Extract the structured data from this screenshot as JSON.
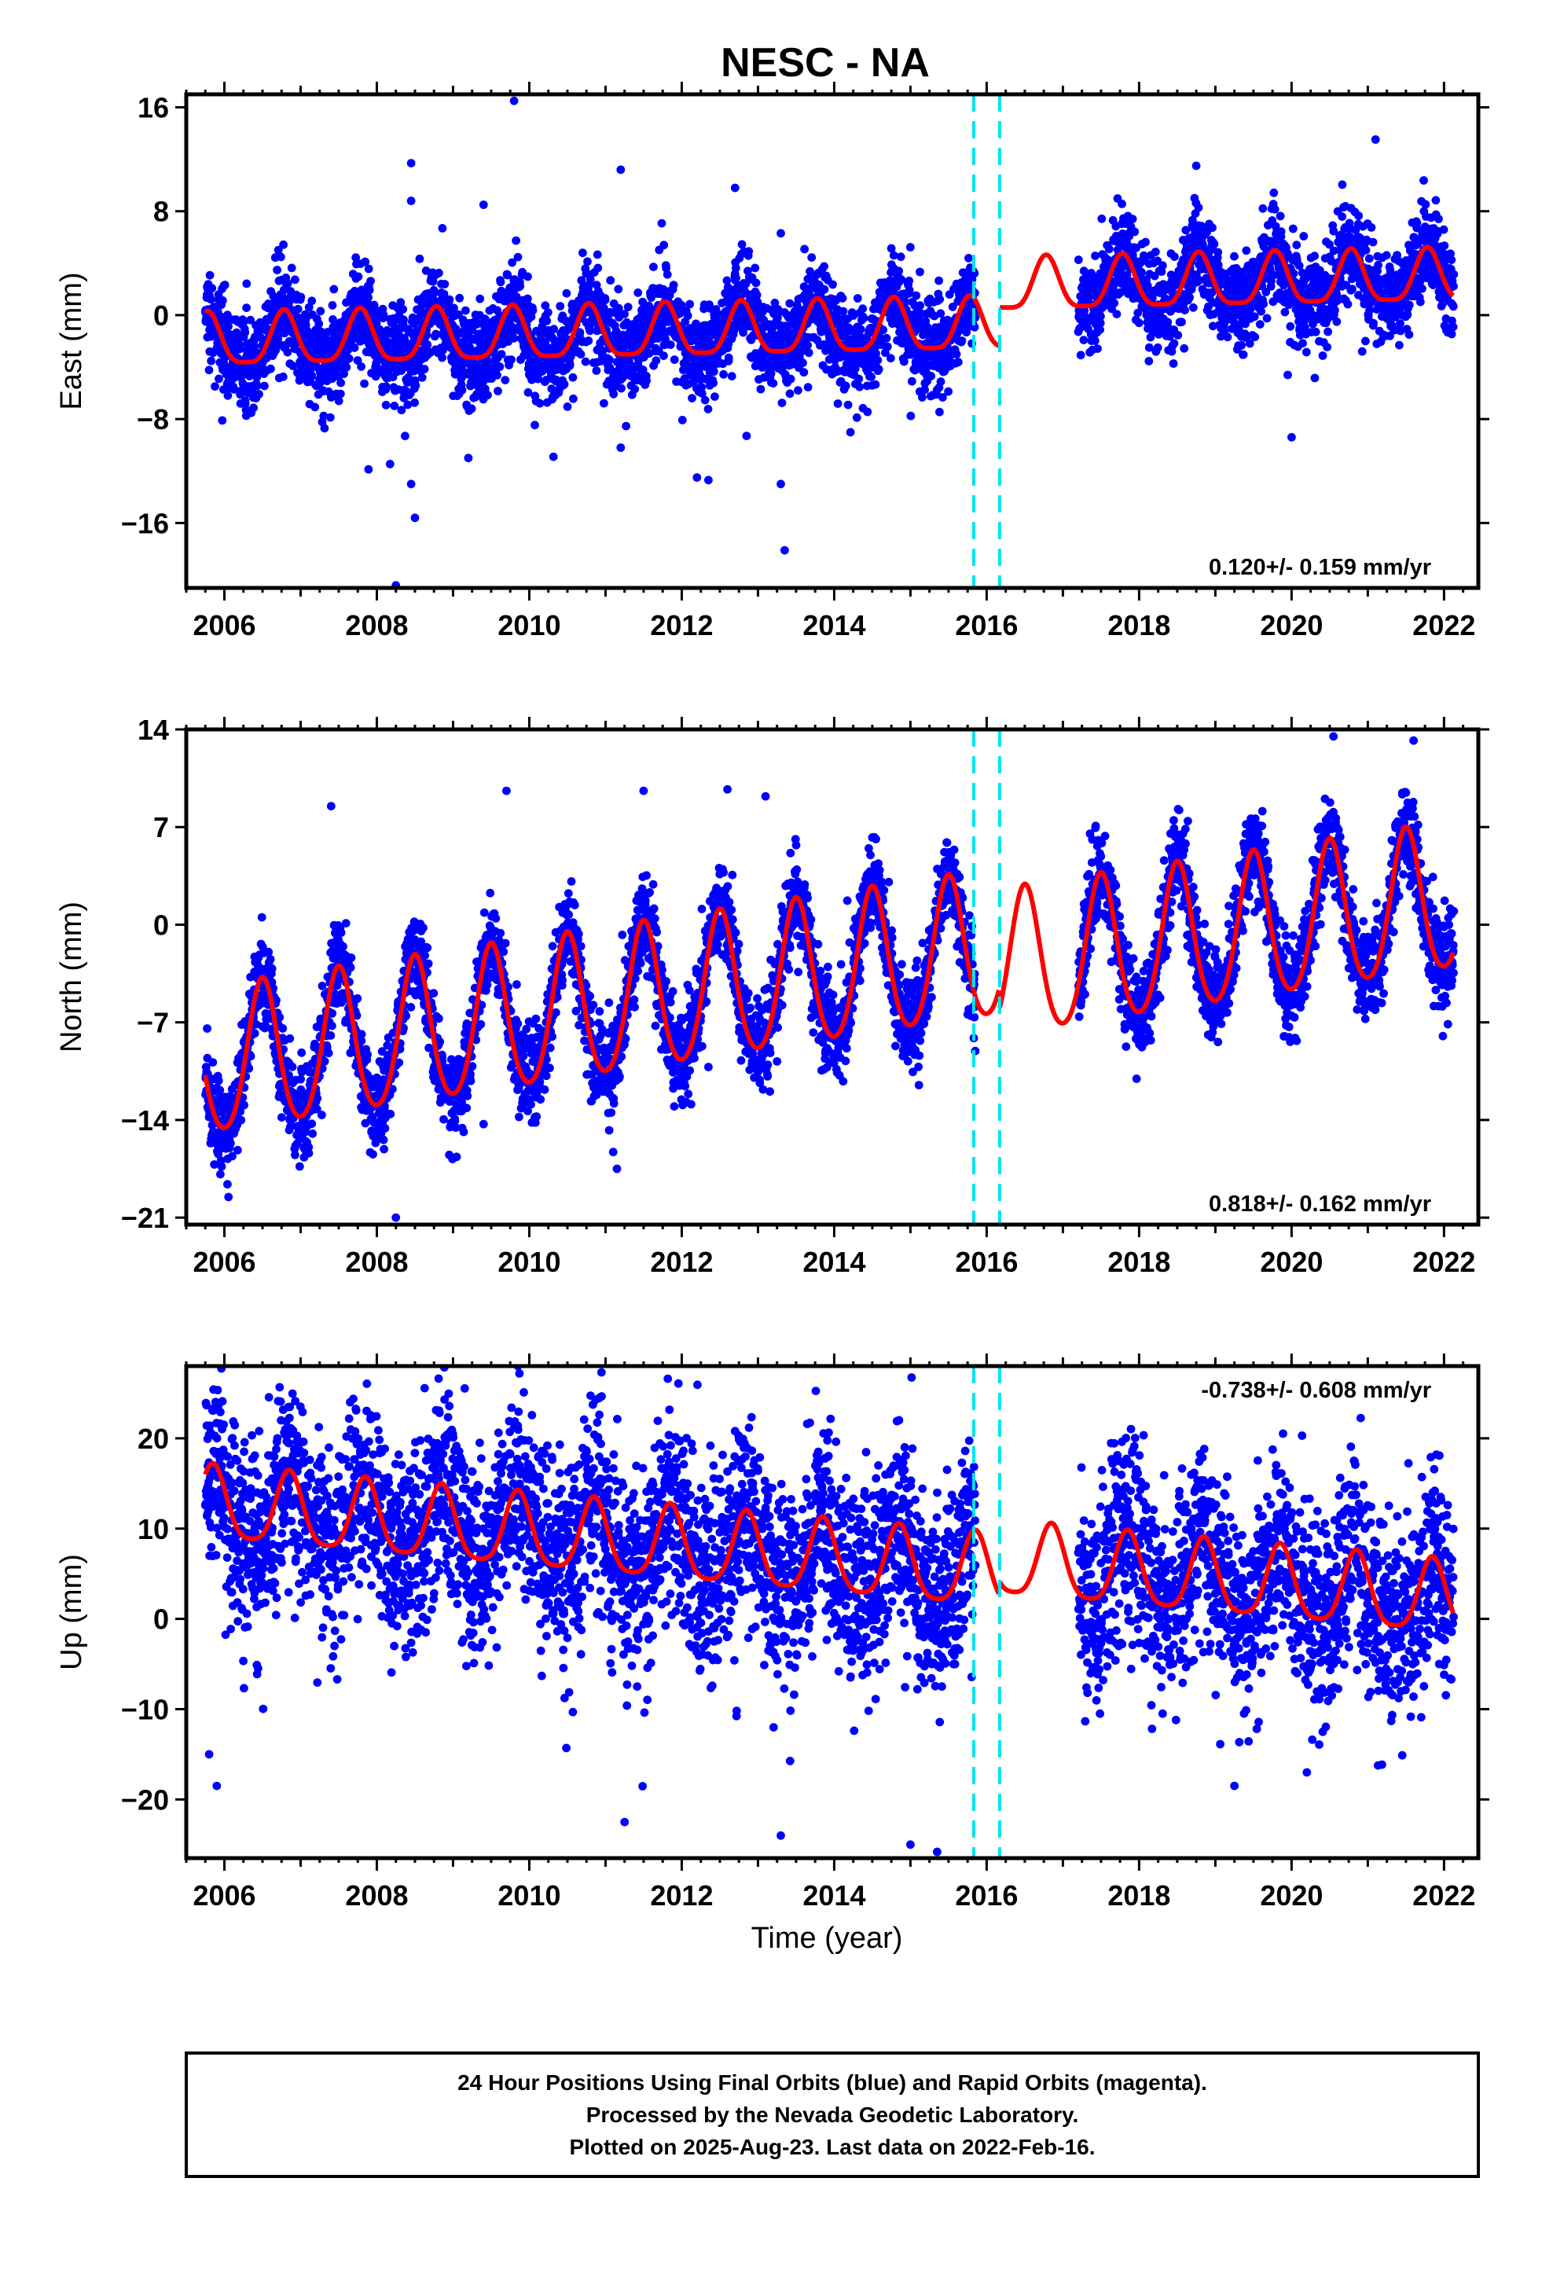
{
  "title": "NESC - NA",
  "xlabel": "Time (year)",
  "colors": {
    "data": "#0000ff",
    "model": "#ff0000",
    "offset": "#00e5ee",
    "frame": "#000000"
  },
  "footer": {
    "line1": "24 Hour Positions Using Final Orbits (blue) and Rapid Orbits (magenta).",
    "line2": "Processed by the Nevada Geodetic Laboratory.",
    "line3": "Plotted on 2025-Aug-23. Last data on 2022-Feb-16."
  },
  "chart_data": [
    {
      "type": "scatter",
      "name": "east",
      "ylabel": "East (mm)",
      "rate": "0.120+/- 0.159 mm/yr",
      "xlim": [
        2005.5,
        2022.45
      ],
      "ylim": [
        -21,
        17
      ],
      "yticks": [
        16,
        8,
        0,
        -8,
        -16
      ],
      "xticks": [
        2006,
        2008,
        2010,
        2012,
        2014,
        2016,
        2018,
        2020,
        2022
      ],
      "offsets": [
        2015.83,
        2016.17
      ],
      "data_start": 2005.75,
      "data_end": 2022.13,
      "gaps": [
        [
          2015.85,
          2017.2
        ]
      ],
      "model": {
        "trend": 0.12,
        "offset_early": -1.2,
        "offset_late": 1.8,
        "step_time": 2016.17,
        "annual_amp": 2.0,
        "annual_phase": 0.78,
        "semi_amp": 0.5,
        "noise": 1.8
      },
      "outliers": [
        [
          2009.8,
          16.5
        ],
        [
          2008.45,
          11.7
        ],
        [
          2008.45,
          8.8
        ],
        [
          2011.2,
          11.2
        ],
        [
          2012.7,
          9.8
        ],
        [
          2013.3,
          6.3
        ],
        [
          2009.4,
          8.5
        ],
        [
          2012.2,
          -12.5
        ],
        [
          2012.35,
          -12.7
        ],
        [
          2008.45,
          -13.0
        ],
        [
          2008.5,
          -15.6
        ],
        [
          2008.25,
          -20.8
        ],
        [
          2013.3,
          -13.0
        ],
        [
          2013.35,
          -18.1
        ],
        [
          2011.2,
          -10.2
        ],
        [
          2009.2,
          -11.0
        ],
        [
          2012.85,
          -9.3
        ],
        [
          2020.0,
          -9.4
        ],
        [
          2018.75,
          11.5
        ],
        [
          2019.95,
          -4.6
        ]
      ]
    },
    {
      "type": "scatter",
      "name": "north",
      "ylabel": "North (mm)",
      "rate": "0.818+/- 0.162 mm/yr",
      "xlim": [
        2005.5,
        2022.45
      ],
      "ylim": [
        -21.5,
        14
      ],
      "yticks": [
        14,
        7,
        0,
        -7,
        -14,
        -21
      ],
      "xticks": [
        2006,
        2008,
        2010,
        2012,
        2014,
        2016,
        2018,
        2020,
        2022
      ],
      "offsets": [
        2015.83,
        2016.17
      ],
      "data_start": 2005.75,
      "data_end": 2022.13,
      "gaps": [
        [
          2015.85,
          2017.2
        ]
      ],
      "model": {
        "trend": 0.818,
        "offset_early": -3.5,
        "offset_late": -5.0,
        "step_time": 2016.17,
        "annual_amp": 5.2,
        "annual_phase": 0.5,
        "semi_amp": 0.6,
        "noise": 1.6
      },
      "outliers": [
        [
          2008.25,
          -21.0
        ],
        [
          2011.15,
          -17.5
        ],
        [
          2011.1,
          -16.3
        ],
        [
          2008.95,
          -16.5
        ],
        [
          2012.6,
          9.7
        ],
        [
          2011.5,
          9.6
        ],
        [
          2013.1,
          9.2
        ],
        [
          2012.35,
          -10.2
        ],
        [
          2010.85,
          -12.3
        ],
        [
          2009.4,
          -14.3
        ],
        [
          2013.25,
          -9.8
        ],
        [
          2009.7,
          9.6
        ],
        [
          2020.55,
          13.5
        ],
        [
          2021.6,
          13.2
        ],
        [
          2005.95,
          -14.3
        ],
        [
          2007.4,
          8.5
        ]
      ]
    },
    {
      "type": "scatter",
      "name": "up",
      "ylabel": "Up (mm)",
      "rate": "-0.738+/- 0.608 mm/yr",
      "xlim": [
        2005.5,
        2022.45
      ],
      "ylim": [
        -26.5,
        28
      ],
      "yticks": [
        20,
        10,
        0,
        -10,
        -20
      ],
      "xticks": [
        2006,
        2008,
        2010,
        2012,
        2014,
        2016,
        2018,
        2020,
        2022
      ],
      "offsets": [
        2015.83,
        2016.17
      ],
      "data_start": 2005.75,
      "data_end": 2022.13,
      "gaps": [
        [
          2015.85,
          2017.2
        ]
      ],
      "model": {
        "trend": -0.738,
        "offset_early": 6.5,
        "offset_late": 8.0,
        "step_time": 2016.17,
        "annual_amp": 4.0,
        "annual_phase": 0.85,
        "semi_amp": 0.8,
        "noise": 5.5
      },
      "outliers": [
        [
          2009.85,
          28.0
        ],
        [
          2014.85,
          22.0
        ],
        [
          2012.7,
          20.8
        ],
        [
          2011.25,
          -22.5
        ],
        [
          2013.3,
          -24.0
        ],
        [
          2015.0,
          -25.0
        ],
        [
          2015.35,
          -25.8
        ],
        [
          2005.9,
          -18.5
        ],
        [
          2005.8,
          -15.0
        ],
        [
          2019.25,
          -18.5
        ],
        [
          2020.2,
          -17.0
        ],
        [
          2006.8,
          21.0
        ],
        [
          2009.35,
          19.5
        ],
        [
          2010.4,
          19.3
        ],
        [
          2021.9,
          18.2
        ]
      ]
    }
  ]
}
